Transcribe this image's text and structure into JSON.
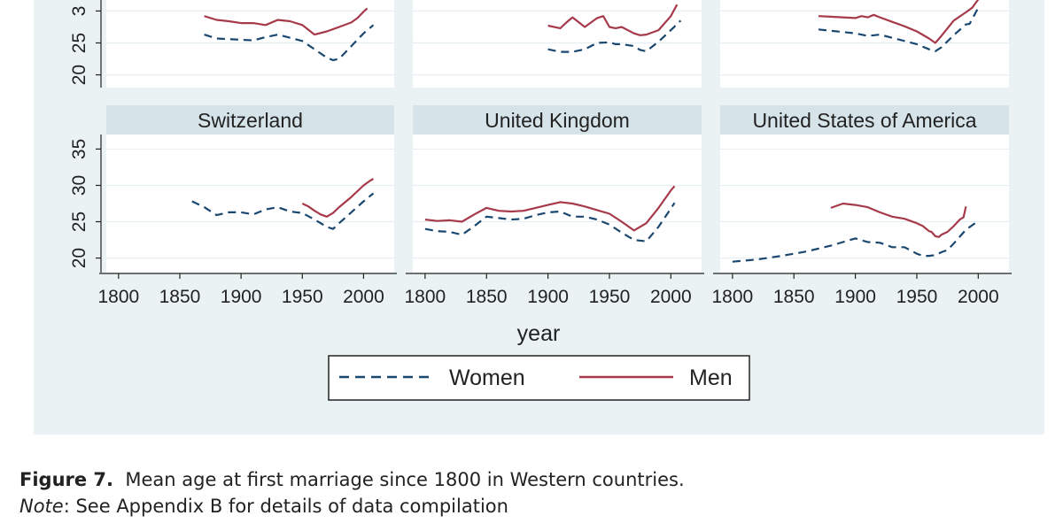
{
  "figure": {
    "caption_label": "Figure 7.",
    "caption_text": "Mean age at first marriage since 1800 in Western countries.",
    "note_label": "Note",
    "note_text": ": See Appendix B for details of data compilation"
  },
  "colors": {
    "background": "#eaf2f3",
    "plot_area": "#ffffff",
    "strip": "#d6e4ea",
    "women": "#1a476f",
    "men": "#a63a4a"
  },
  "chart_data": {
    "type": "line",
    "xlabel": "year",
    "ylabel": "",
    "xlim": [
      1790,
      2025
    ],
    "ylim": [
      18,
      37
    ],
    "x_ticks": [
      "1800",
      "1850",
      "1900",
      "1950",
      "2000"
    ],
    "y_ticks": [
      "20",
      "25",
      "30",
      "35"
    ],
    "partial_y_ticks": [
      "20",
      "25",
      "3"
    ],
    "grid": true,
    "legend": {
      "position": "bottom-center",
      "entries": [
        "Women",
        "Men"
      ]
    },
    "panels": [
      {
        "id": "top-left",
        "title": "",
        "series": [
          {
            "name": "Women",
            "style": "dashed",
            "x": [
              1870,
              1880,
              1890,
              1900,
              1910,
              1920,
              1930,
              1940,
              1950,
              1960,
              1970,
              1975,
              1980,
              1990,
              2000,
              2008
            ],
            "y": [
              26.3,
              25.7,
              25.6,
              25.5,
              25.4,
              25.9,
              26.3,
              25.8,
              25.3,
              24.0,
              22.7,
              22.3,
              22.5,
              24.5,
              26.5,
              27.8
            ]
          },
          {
            "name": "Men",
            "style": "solid",
            "x": [
              1870,
              1880,
              1890,
              1900,
              1910,
              1920,
              1930,
              1940,
              1950,
              1960,
              1970,
              1980,
              1990,
              1995,
              2000,
              2003
            ],
            "y": [
              29.2,
              28.6,
              28.4,
              28.1,
              28.1,
              27.8,
              28.6,
              28.4,
              27.8,
              26.3,
              26.8,
              27.5,
              28.2,
              28.9,
              29.9,
              30.4
            ]
          }
        ]
      },
      {
        "id": "top-middle",
        "title": "",
        "series": [
          {
            "name": "Women",
            "style": "dashed",
            "x": [
              1900,
              1910,
              1920,
              1930,
              1940,
              1950,
              1955,
              1960,
              1970,
              1975,
              1980,
              1990,
              2000,
              2008
            ],
            "y": [
              24.0,
              23.6,
              23.6,
              24.0,
              25.0,
              25.1,
              24.8,
              24.8,
              24.5,
              23.9,
              23.7,
              25.2,
              27.0,
              28.5
            ]
          },
          {
            "name": "Men",
            "style": "solid",
            "x": [
              1900,
              1910,
              1915,
              1920,
              1930,
              1940,
              1945,
              1950,
              1955,
              1960,
              1970,
              1975,
              1980,
              1990,
              2000,
              2005
            ],
            "y": [
              27.7,
              27.3,
              28.2,
              29.0,
              27.5,
              28.9,
              29.2,
              27.5,
              27.3,
              27.5,
              26.5,
              26.2,
              26.3,
              27.0,
              29.2,
              31.0
            ]
          }
        ]
      },
      {
        "id": "top-right",
        "title": "",
        "series": [
          {
            "name": "Women",
            "style": "dashed",
            "x": [
              1870,
              1880,
              1890,
              1900,
              1910,
              1920,
              1930,
              1940,
              1950,
              1960,
              1965,
              1970,
              1980,
              1990,
              1993,
              2000
            ],
            "y": [
              27.1,
              26.9,
              26.7,
              26.5,
              26.1,
              26.3,
              25.8,
              25.3,
              24.8,
              24.0,
              23.7,
              24.3,
              26.2,
              27.9,
              28.0,
              30.5
            ]
          },
          {
            "name": "Men",
            "style": "solid",
            "x": [
              1870,
              1880,
              1890,
              1900,
              1905,
              1910,
              1915,
              1920,
              1930,
              1940,
              1950,
              1960,
              1965,
              1970,
              1980,
              1990,
              1995,
              2000
            ],
            "y": [
              29.2,
              29.1,
              29.0,
              28.9,
              29.2,
              29.0,
              29.4,
              29.0,
              28.3,
              27.6,
              26.8,
              25.7,
              25.0,
              26.1,
              28.5,
              29.8,
              30.5,
              31.8
            ]
          }
        ]
      },
      {
        "id": "switzerland",
        "title": "Switzerland",
        "series": [
          {
            "name": "Women",
            "style": "dashed",
            "x": [
              1860,
              1870,
              1880,
              1890,
              1900,
              1910,
              1920,
              1930,
              1940,
              1950,
              1960,
              1970,
              1975,
              1980,
              1990,
              2000,
              2008
            ],
            "y": [
              27.8,
              27.0,
              25.9,
              26.3,
              26.3,
              26.0,
              26.7,
              27.0,
              26.4,
              26.2,
              25.3,
              24.3,
              24.0,
              24.8,
              26.3,
              27.8,
              28.9
            ]
          },
          {
            "name": "Men",
            "style": "solid",
            "x": [
              1950,
              1955,
              1960,
              1965,
              1970,
              1975,
              1980,
              1990,
              2000,
              2005,
              2008
            ],
            "y": [
              27.5,
              27.1,
              26.5,
              26.0,
              25.7,
              26.2,
              27.0,
              28.4,
              30.0,
              30.6,
              30.9
            ]
          }
        ]
      },
      {
        "id": "united-kingdom",
        "title": "United Kingdom",
        "series": [
          {
            "name": "Women",
            "style": "dashed",
            "x": [
              1800,
              1810,
              1820,
              1830,
              1840,
              1850,
              1860,
              1870,
              1880,
              1890,
              1900,
              1910,
              1920,
              1930,
              1940,
              1950,
              1960,
              1970,
              1980,
              1990,
              2000,
              2003
            ],
            "y": [
              24.0,
              23.7,
              23.6,
              23.2,
              24.4,
              25.7,
              25.5,
              25.3,
              25.4,
              25.9,
              26.3,
              26.4,
              25.7,
              25.7,
              25.3,
              24.6,
              23.5,
              22.5,
              22.3,
              24.3,
              26.8,
              27.6
            ]
          },
          {
            "name": "Men",
            "style": "solid",
            "x": [
              1800,
              1810,
              1820,
              1830,
              1840,
              1850,
              1860,
              1870,
              1880,
              1890,
              1900,
              1910,
              1920,
              1930,
              1940,
              1950,
              1960,
              1970,
              1980,
              1990,
              2000,
              2003
            ],
            "y": [
              25.3,
              25.1,
              25.2,
              25.0,
              26.0,
              26.9,
              26.5,
              26.4,
              26.5,
              26.9,
              27.3,
              27.7,
              27.5,
              27.1,
              26.6,
              26.1,
              25.0,
              23.8,
              24.8,
              26.9,
              29.3,
              29.9
            ]
          }
        ]
      },
      {
        "id": "united-states-of-america",
        "title": "United States of America",
        "series": [
          {
            "name": "Women",
            "style": "dashed",
            "x": [
              1800,
              1820,
              1840,
              1860,
              1880,
              1890,
              1900,
              1910,
              1920,
              1930,
              1940,
              1950,
              1955,
              1960,
              1965,
              1970,
              1975,
              1980,
              1990,
              2000
            ],
            "y": [
              19.5,
              19.8,
              20.3,
              20.9,
              21.7,
              22.2,
              22.7,
              22.2,
              22.1,
              21.5,
              21.5,
              20.6,
              20.3,
              20.3,
              20.4,
              20.8,
              21.1,
              22.0,
              23.9,
              25.1
            ]
          },
          {
            "name": "Men",
            "style": "solid",
            "x": [
              1880,
              1890,
              1900,
              1910,
              1920,
              1930,
              1940,
              1950,
              1955,
              1960,
              1962,
              1965,
              1968,
              1970,
              1975,
              1980,
              1985,
              1988,
              1990
            ],
            "y": [
              26.9,
              27.5,
              27.3,
              27.0,
              26.3,
              25.7,
              25.4,
              24.8,
              24.4,
              23.7,
              23.6,
              23.0,
              22.9,
              23.2,
              23.6,
              24.4,
              25.3,
              25.6,
              27.1
            ]
          }
        ]
      }
    ]
  }
}
